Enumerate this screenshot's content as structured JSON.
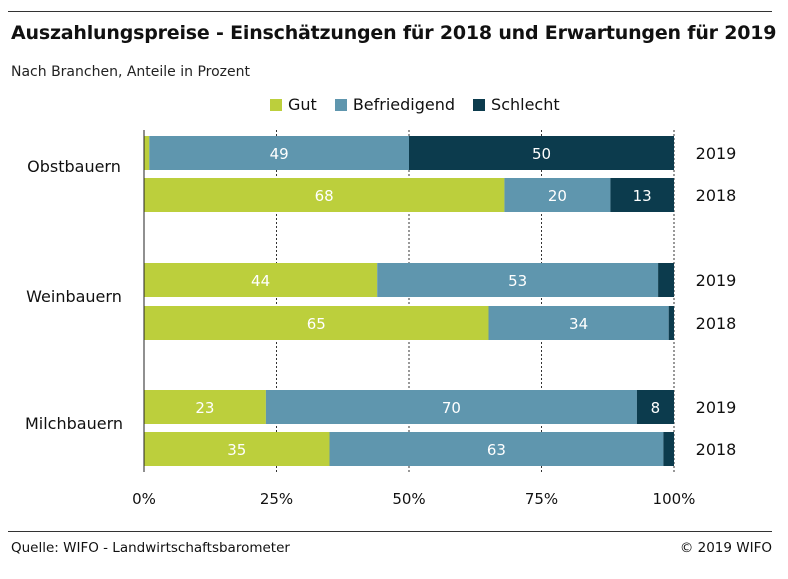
{
  "title": "Auszahlungspreise - Einschätzungen für 2018 und Erwartungen für 2019",
  "subtitle": "Nach Branchen, Anteile in Prozent",
  "source": "Quelle: WIFO - Landwirtschaftsbarometer",
  "copyright": "© 2019 WIFO",
  "colors": {
    "gut": "#bccf3c",
    "befriedigend": "#5f96ae",
    "schlecht": "#0c3b4d"
  },
  "chart_data": {
    "type": "bar",
    "orientation": "horizontal",
    "stacked": true,
    "title": "Auszahlungspreise - Einschätzungen für 2018 und Erwartungen für 2019",
    "subtitle": "Nach Branchen, Anteile in Prozent",
    "xlim": [
      0,
      100
    ],
    "x_ticks": [
      "0%",
      "25%",
      "50%",
      "75%",
      "100%"
    ],
    "grid": true,
    "legend_position": "top",
    "series": [
      {
        "name": "Gut",
        "color": "#bccf3c"
      },
      {
        "name": "Befriedigend",
        "color": "#5f96ae"
      },
      {
        "name": "Schlecht",
        "color": "#0c3b4d"
      }
    ],
    "groups": [
      {
        "name": "Obstbauern",
        "bars": [
          {
            "year": "2019",
            "values": [
              1,
              49,
              50
            ],
            "labels": [
              "",
              "49",
              "50"
            ]
          },
          {
            "year": "2018",
            "values": [
              68,
              20,
              13
            ],
            "labels": [
              "68",
              "20",
              "13"
            ]
          }
        ]
      },
      {
        "name": "Weinbauern",
        "bars": [
          {
            "year": "2019",
            "values": [
              44,
              53,
              4
            ],
            "labels": [
              "44",
              "53",
              ""
            ]
          },
          {
            "year": "2018",
            "values": [
              65,
              34,
              2
            ],
            "labels": [
              "65",
              "34",
              ""
            ]
          }
        ]
      },
      {
        "name": "Milchbauern",
        "bars": [
          {
            "year": "2019",
            "values": [
              23,
              70,
              8
            ],
            "labels": [
              "23",
              "70",
              "8"
            ]
          },
          {
            "year": "2018",
            "values": [
              35,
              63,
              2
            ],
            "labels": [
              "35",
              "63",
              ""
            ]
          }
        ]
      }
    ]
  }
}
